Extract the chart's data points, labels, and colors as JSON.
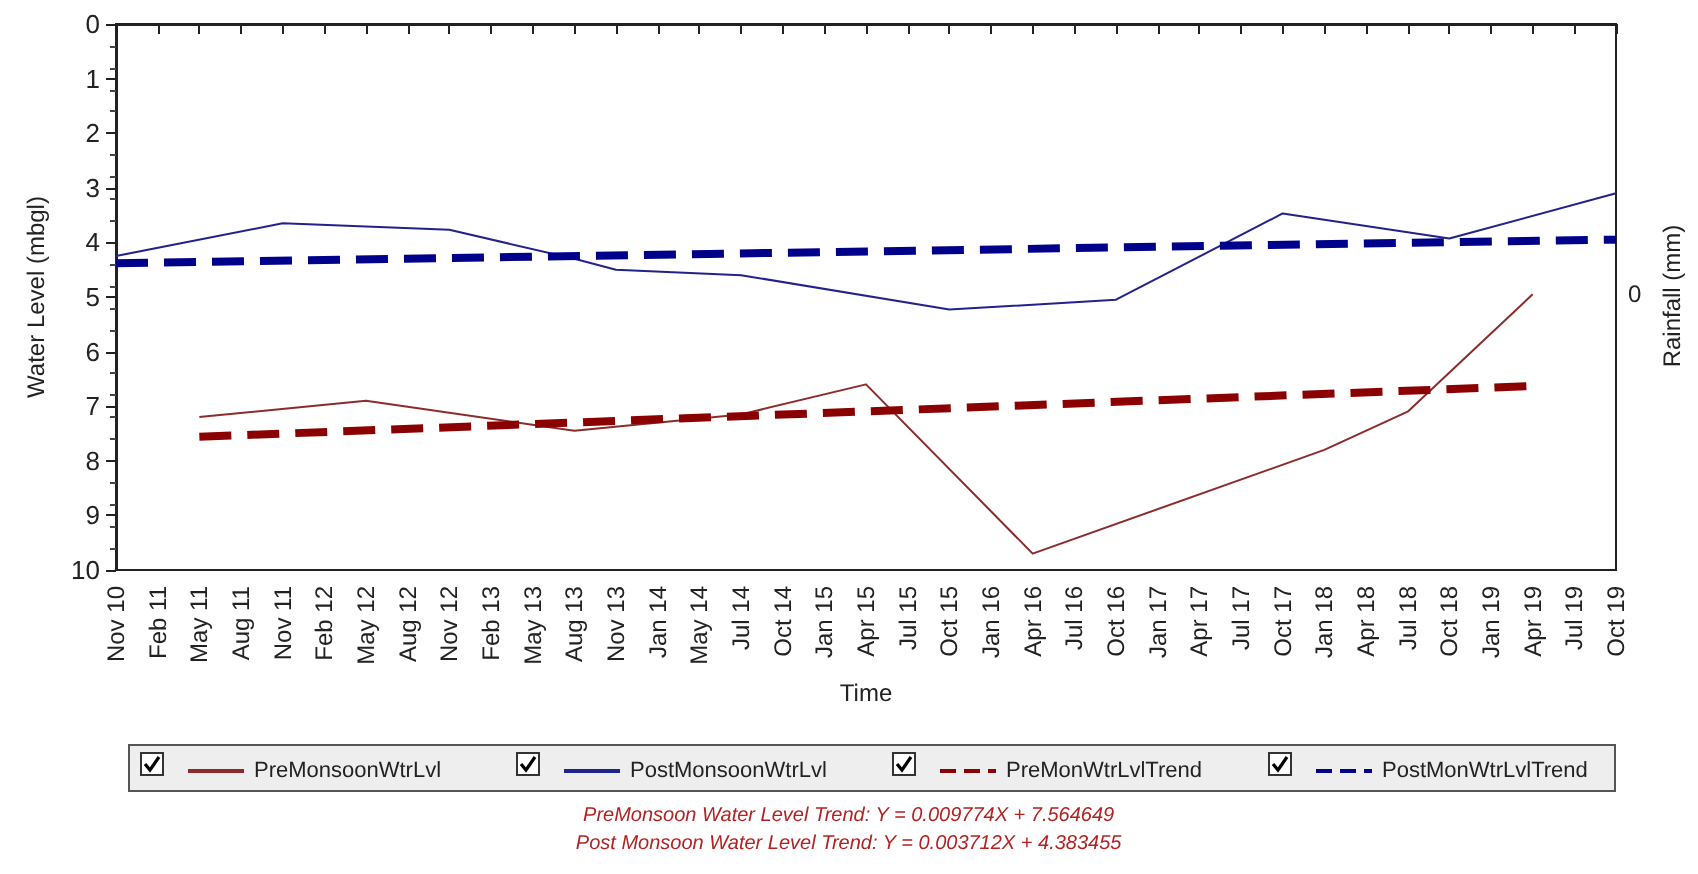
{
  "chart_data": {
    "type": "line",
    "xlabel": "Time",
    "ylabel": "Water Level (mbgl)",
    "y2label": "Rainfall (mm)",
    "categories": [
      "Nov 10",
      "Feb 11",
      "May 11",
      "Aug 11",
      "Nov 11",
      "Feb 12",
      "May 12",
      "Aug 12",
      "Nov 12",
      "Feb 13",
      "May 13",
      "Aug 13",
      "Nov 13",
      "Jan 14",
      "May 14",
      "Jul 14",
      "Oct 14",
      "Jan 15",
      "Apr 15",
      "Jul 15",
      "Oct 15",
      "Jan 16",
      "Apr 16",
      "Jul 16",
      "Oct 16",
      "Jan 17",
      "Apr 17",
      "Jul 17",
      "Oct 17",
      "Jan 18",
      "Apr 18",
      "Jul 18",
      "Oct 18",
      "Jan 19",
      "Apr 19",
      "Jul 19",
      "Oct 19"
    ],
    "series": [
      {
        "name": "PreMonsoonWtrLvl",
        "color": "#8b2b2b",
        "line_style": "solid",
        "values": [
          null,
          null,
          7.2,
          null,
          null,
          null,
          6.9,
          null,
          null,
          null,
          null,
          7.45,
          null,
          null,
          null,
          7.15,
          null,
          null,
          6.6,
          null,
          null,
          null,
          9.7,
          null,
          null,
          null,
          null,
          null,
          null,
          7.8,
          null,
          7.1,
          null,
          null,
          4.95,
          null,
          null
        ]
      },
      {
        "name": "PostMonsoonWtrLvl",
        "color": "#22228b",
        "line_style": "solid",
        "values": [
          4.25,
          null,
          null,
          null,
          3.65,
          null,
          null,
          null,
          3.77,
          null,
          null,
          4.3,
          4.5,
          null,
          null,
          4.6,
          null,
          null,
          null,
          null,
          5.23,
          null,
          null,
          null,
          5.05,
          null,
          null,
          null,
          3.47,
          null,
          null,
          null,
          3.93,
          null,
          null,
          null,
          3.1
        ]
      },
      {
        "name": "PreMonWtrLvlTrend",
        "color": "#8b0000",
        "line_style": "dashed",
        "values": [
          null,
          null,
          7.56,
          null,
          null,
          null,
          null,
          null,
          null,
          null,
          null,
          null,
          null,
          null,
          null,
          null,
          null,
          null,
          null,
          null,
          null,
          null,
          null,
          null,
          null,
          null,
          null,
          null,
          null,
          null,
          null,
          null,
          null,
          null,
          6.63,
          null,
          null
        ]
      },
      {
        "name": "PostMonWtrLvlTrend",
        "color": "#00008b",
        "line_style": "dashed",
        "values": [
          4.38,
          null,
          null,
          null,
          null,
          null,
          null,
          null,
          null,
          null,
          null,
          null,
          null,
          null,
          null,
          null,
          null,
          null,
          null,
          null,
          null,
          null,
          null,
          null,
          null,
          null,
          null,
          null,
          null,
          null,
          null,
          null,
          null,
          null,
          null,
          null,
          3.95
        ]
      }
    ],
    "ylim": [
      10,
      0
    ],
    "yticks": [
      0,
      1,
      2,
      3,
      4,
      5,
      6,
      7,
      8,
      9,
      10
    ],
    "grid": false,
    "legend": "bottom",
    "marker": "none",
    "annotations": [
      "0",
      "PreMonsoon Water Level Trend: Y = 0.009774X + 7.564649",
      "Post Monsoon Water Level Trend: Y = 0.003712X + 4.383455"
    ]
  }
}
